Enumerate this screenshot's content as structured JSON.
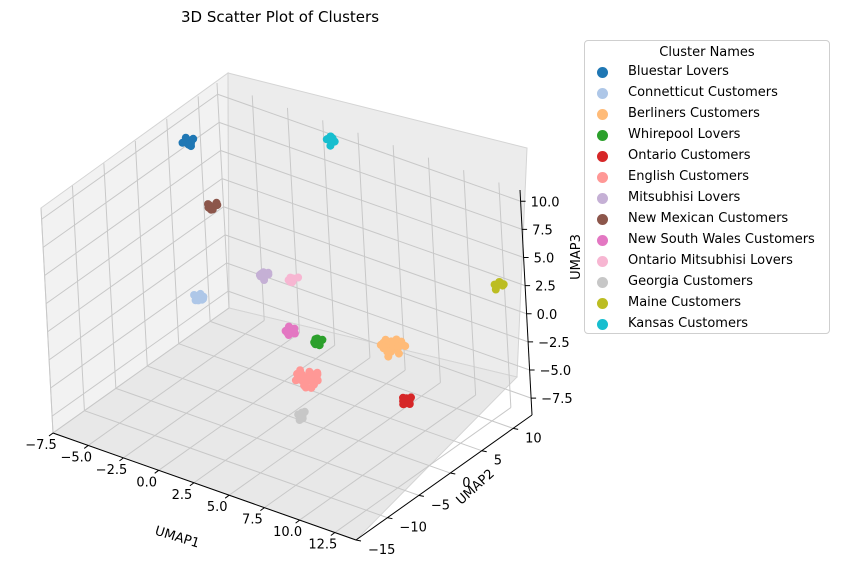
{
  "chart_data": {
    "type": "scatter",
    "title": "3D Scatter Plot of Clusters",
    "xlabel": "UMAP1",
    "ylabel": "UMAP2",
    "zlabel": "UMAP3",
    "x_ticks": [
      "−7.5",
      "−5.0",
      "−2.5",
      "0.0",
      "2.5",
      "5.0",
      "7.5",
      "10.0",
      "12.5"
    ],
    "y_ticks": [
      "−15",
      "−10",
      "−5",
      "0",
      "5",
      "10"
    ],
    "z_ticks": [
      "−7.5",
      "−5.0",
      "−2.5",
      "0.0",
      "2.5",
      "5.0",
      "7.5",
      "10.0"
    ],
    "xlim": [
      -7.5,
      14
    ],
    "ylim": [
      -15,
      13
    ],
    "zlim": [
      -9,
      11
    ],
    "legend_title": "Cluster Names",
    "legend_position": "outside-right",
    "grid": true,
    "series": [
      {
        "name": "Bluestar Lovers",
        "color": "#1f77b4",
        "x": -6.5,
        "y": 6.0,
        "z": 9.0
      },
      {
        "name": "Connetticut Customers",
        "color": "#aec7e8",
        "x": -3.0,
        "y": -1.0,
        "z": -0.5
      },
      {
        "name": "Berliners Customers",
        "color": "#ffbb78",
        "x": 8.0,
        "y": 5.0,
        "z": -2.5
      },
      {
        "name": "Whirepool Lovers",
        "color": "#2ca02c",
        "x": 3.5,
        "y": 3.0,
        "z": -3.2
      },
      {
        "name": "Ontario Customers",
        "color": "#d62728",
        "x": 12.5,
        "y": -3.0,
        "z": -2.0
      },
      {
        "name": "English Customers",
        "color": "#ff9896",
        "x": 4.0,
        "y": 0.0,
        "z": -5.0
      },
      {
        "name": "Mitsubhisi Lovers",
        "color": "#c5b0d5",
        "x": -0.5,
        "y": 4.0,
        "z": 0.5
      },
      {
        "name": "New Mexican Customers",
        "color": "#8c564b",
        "x": -4.5,
        "y": 5.0,
        "z": 4.5
      },
      {
        "name": "New South Wales Customers",
        "color": "#e377c2",
        "x": 2.0,
        "y": 2.0,
        "z": -2.5
      },
      {
        "name": "Ontario Mitsubhisi Lovers",
        "color": "#f7b6d2",
        "x": 0.5,
        "y": 6.0,
        "z": 0.0
      },
      {
        "name": "Georgia Customers",
        "color": "#c7c7c7",
        "x": 4.0,
        "y": -1.0,
        "z": -8.0
      },
      {
        "name": "Maine Customers",
        "color": "#bcbd22",
        "x": 13.5,
        "y": 10.0,
        "z": 3.5
      },
      {
        "name": "Kansas Customers",
        "color": "#17becf",
        "x": 1.0,
        "y": 12.0,
        "z": 10.0
      }
    ]
  }
}
